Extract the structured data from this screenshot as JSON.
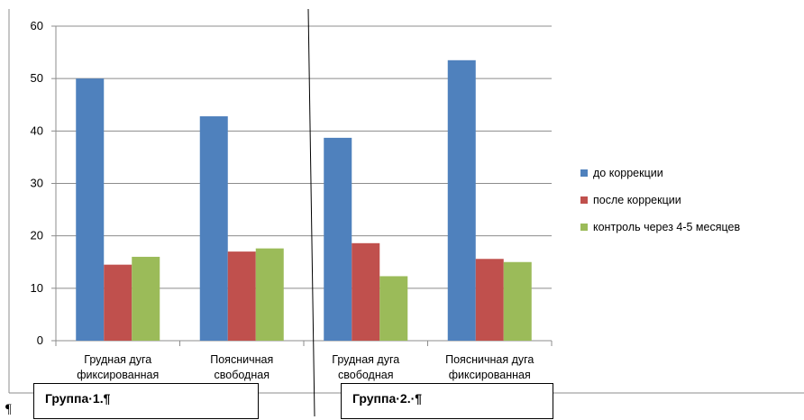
{
  "chart_data": {
    "type": "bar",
    "categories": [
      [
        "Грудная дуга",
        "фиксированная"
      ],
      [
        "Поясничная",
        "свободная"
      ],
      [
        "Грудная дуга",
        "свободная"
      ],
      [
        "Поясничная дуга",
        "фиксированная"
      ]
    ],
    "series": [
      {
        "name": "до коррекции",
        "color": "#4F81BD",
        "values": [
          50,
          42.8,
          38.7,
          53.5
        ]
      },
      {
        "name": "после коррекции",
        "color": "#C0504D",
        "values": [
          14.5,
          17,
          18.6,
          15.6
        ]
      },
      {
        "name": "контроль через 4-5 месяцев",
        "color": "#9BBB59",
        "values": [
          16,
          17.6,
          12.3,
          15
        ]
      }
    ],
    "ylim": [
      0,
      60
    ],
    "yticks": [
      0,
      10,
      20,
      30,
      40,
      50,
      60
    ],
    "grid": true,
    "legend_position": "right",
    "title": "",
    "xlabel": "",
    "ylabel": ""
  },
  "groups": {
    "group1_label": "Группа·1.¶",
    "group2_label": "Группа·2.·¶"
  },
  "pilcrow": "¶"
}
